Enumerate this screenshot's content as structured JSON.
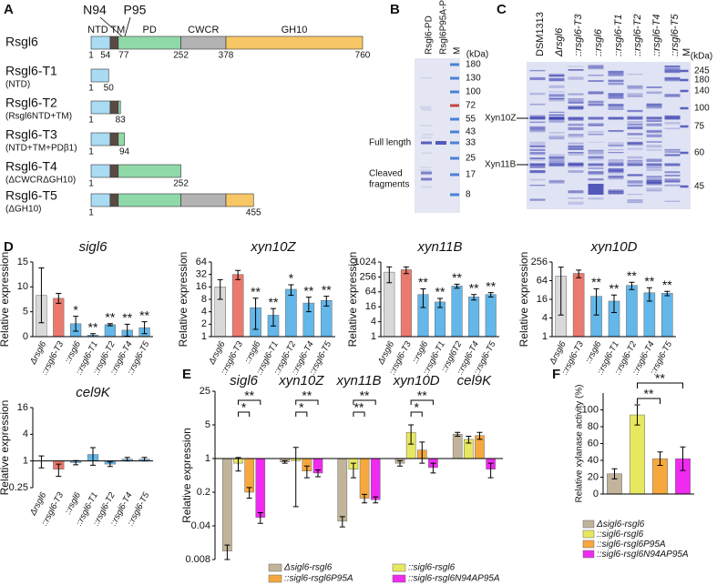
{
  "panel_a": {
    "label": "A",
    "domains": [
      "NTD",
      "TM",
      "PD",
      "CWCR",
      "GH10"
    ],
    "domain_colors": [
      "#a9dcf3",
      "#5a4a44",
      "#8fd9a8",
      "#b3b3b3",
      "#f7c766"
    ],
    "sites": [
      "N94",
      "P95"
    ],
    "constructs": [
      {
        "name": "Rsgl6",
        "positions": [
          1,
          54,
          77,
          252,
          378,
          760
        ]
      },
      {
        "name": "Rsgl6-T1",
        "note": "(NTD)",
        "positions": [
          1,
          50
        ]
      },
      {
        "name": "Rsgl6-T2",
        "note": "(Rsgl6NTD+TM)",
        "positions": [
          1,
          83
        ]
      },
      {
        "name": "Rsgl6-T3",
        "note": "(NTD+TM+PDβ1)",
        "positions": [
          1,
          94
        ],
        "color": "#e0201c"
      },
      {
        "name": "Rsgl6-T4",
        "note": "(ΔCWCRΔGH10)",
        "positions": [
          1,
          252
        ]
      },
      {
        "name": "Rsgl6-T5",
        "note": "(ΔGH10)",
        "positions": [
          1,
          455
        ]
      }
    ]
  },
  "panel_b": {
    "label": "B",
    "lanes": [
      "Rsgl6-PD",
      "Rsgl6P95A-PD",
      "M"
    ],
    "unit": "(kDa)",
    "markers": [
      180,
      130,
      100,
      72,
      55,
      43,
      33,
      25,
      17,
      8
    ],
    "full": "Full length",
    "cleaved": [
      "Cleaved",
      "fragments"
    ]
  },
  "panel_c": {
    "label": "C",
    "lanes": [
      {
        "name": "DSM1313"
      },
      {
        "name": "Δrsgl6"
      },
      {
        "name": "::rsgl6-T3",
        "color": "#e0201c"
      },
      {
        "name": "::rsgl6"
      },
      {
        "name": "::rsgl6-T1"
      },
      {
        "name": "::rsgl6-T2"
      },
      {
        "name": "::rsgl6-T4"
      },
      {
        "name": "::rsgl6-T5"
      },
      {
        "name": "M"
      }
    ],
    "unit": "(kDa)",
    "markers": [
      245,
      180,
      140,
      100,
      75,
      60,
      45
    ],
    "proteins": [
      "Xyn10Z",
      "Xyn11B"
    ]
  },
  "chart_data": [
    {
      "type": "bar",
      "panel": "D",
      "title": "sigl6",
      "ylabel": "Relative expression",
      "categories": [
        "Δrsgl6",
        "::rsgl6-T3",
        "::rsgl6",
        "::rsgl6-T1",
        "::rsgl6-T2",
        "::rsgl6-T4",
        "::rsgl6-T5"
      ],
      "category_colors": [
        "#111111",
        "#e0201c",
        "#111111",
        "#111111",
        "#111111",
        "#111111",
        "#111111"
      ],
      "colors": [
        "#d9d9d9",
        "#ea7a6e",
        "#63b7e9",
        "#63b7e9",
        "#63b7e9",
        "#63b7e9",
        "#63b7e9"
      ],
      "values": [
        8.3,
        7.7,
        2.6,
        0.3,
        2.4,
        1.3,
        1.8
      ],
      "errors": [
        5.5,
        1,
        1.5,
        0.3,
        0.2,
        1.2,
        1.2
      ],
      "significance": [
        null,
        null,
        "*",
        "**",
        "**",
        "**",
        "**"
      ],
      "log_scale": false,
      "ylim": [
        0,
        15
      ],
      "yticks": [
        0,
        5,
        10,
        15
      ]
    },
    {
      "type": "bar",
      "title": "xyn10Z",
      "ylabel": "Relative expression",
      "categories": [
        "Δrsgl6",
        "::rsgl6-T3",
        "::rsgl6",
        "::rsgl6-T1",
        "::rsgl6-T2",
        "::rsgl6-T4",
        "::rsgl6-T5"
      ],
      "category_colors": [
        "#111111",
        "#e0201c",
        "#111111",
        "#111111",
        "#111111",
        "#111111",
        "#111111"
      ],
      "colors": [
        "#d9d9d9",
        "#ea7a6e",
        "#63b7e9",
        "#63b7e9",
        "#63b7e9",
        "#63b7e9",
        "#63b7e9"
      ],
      "values": [
        16,
        32,
        5,
        3.3,
        14,
        6.5,
        7.5
      ],
      "errors": [
        8,
        8,
        3.5,
        1.5,
        4,
        2.5,
        2
      ],
      "significance": [
        null,
        null,
        "**",
        "**",
        "*",
        "**",
        "**"
      ],
      "log_scale": true,
      "ylim": [
        1,
        64
      ],
      "yticks": [
        1,
        2,
        4,
        8,
        16,
        32,
        64
      ]
    },
    {
      "type": "bar",
      "title": "xyn11B",
      "ylabel": "Relative expression",
      "categories": [
        "Δrsgl6",
        "::rsgl6-T3",
        "::rsgl6",
        "::rsgl6-T1",
        "::rsgl6T2",
        "::rsgl6-T4",
        "::rsgl6-T5"
      ],
      "category_colors": [
        "#111111",
        "#e0201c",
        "#111111",
        "#111111",
        "#111111",
        "#111111",
        "#111111"
      ],
      "colors": [
        "#d9d9d9",
        "#ea7a6e",
        "#63b7e9",
        "#63b7e9",
        "#63b7e9",
        "#63b7e9",
        "#63b7e9"
      ],
      "values": [
        400,
        500,
        50,
        25,
        110,
        40,
        50
      ],
      "errors": [
        250,
        150,
        35,
        10,
        20,
        10,
        10
      ],
      "significance": [
        null,
        null,
        "**",
        "**",
        "**",
        "**",
        "**"
      ],
      "log_scale": true,
      "ylim": [
        1,
        1024
      ],
      "yticks": [
        1,
        4,
        16,
        64,
        256,
        1024
      ]
    },
    {
      "type": "bar",
      "title": "xyn10D",
      "ylabel": "Relative expression",
      "categories": [
        "Δrsgl6",
        "::rsgl6-T3",
        "::rsgl6",
        "::rsgl6-T1",
        "::rsgl6-T2",
        "::rsgl6-T4",
        "::rsgl6-T5"
      ],
      "category_colors": [
        "#111111",
        "#e0201c",
        "#111111",
        "#111111",
        "#111111",
        "#111111",
        "#111111"
      ],
      "colors": [
        "#d9d9d9",
        "#ea7a6e",
        "#63b7e9",
        "#63b7e9",
        "#63b7e9",
        "#63b7e9",
        "#63b7e9"
      ],
      "values": [
        90,
        110,
        20,
        14,
        45,
        26,
        25
      ],
      "errors": [
        85,
        30,
        15,
        8,
        12,
        12,
        4
      ],
      "significance": [
        null,
        null,
        "**",
        "**",
        "**",
        "**",
        "**"
      ],
      "log_scale": true,
      "ylim": [
        1,
        256
      ],
      "yticks": [
        1,
        4,
        16,
        64,
        256
      ]
    },
    {
      "type": "bar",
      "title": "cel9K",
      "ylabel": "Relative expression",
      "categories": [
        "Δrsgl6",
        "::rsgl6-T3",
        "::rsgl6",
        "::rsgl6-T1",
        "::rsgl6-T2",
        "::rsgl6-T4",
        "::rsgl6-T5"
      ],
      "category_colors": [
        "#111111",
        "#e0201c",
        "#111111",
        "#111111",
        "#111111",
        "#111111",
        "#111111"
      ],
      "colors": [
        "#d9d9d9",
        "#ea7a6e",
        "#63b7e9",
        "#63b7e9",
        "#63b7e9",
        "#63b7e9",
        "#63b7e9"
      ],
      "values": [
        1,
        0.65,
        0.92,
        1.4,
        0.85,
        1.1,
        1.1
      ],
      "errors": [
        0.3,
        0.2,
        0.1,
        0.6,
        0.1,
        0.1,
        0.1
      ],
      "log_scale": true,
      "ylim": [
        0.25,
        16
      ],
      "yticks": [
        0.25,
        1,
        4,
        16
      ]
    },
    {
      "type": "grouped_bar",
      "panel": "E",
      "ylabel": "Relative expression",
      "categories": [
        "sigl6",
        "xyn10Z",
        "xyn11B",
        "xyn10D",
        "cel9K"
      ],
      "series": [
        {
          "name": "Δsigl6-rsgl6",
          "color": "#c2b49a",
          "values": [
            0.012,
            0.85,
            0.05,
            0.8,
            3.2
          ],
          "errors": [
            0.004,
            0.05,
            0.012,
            0.1,
            0.3
          ]
        },
        {
          "name": "::sigl6-rsgl6",
          "color": "#e8e860",
          "values": [
            0.8,
            0.9,
            0.6,
            3.5,
            2.5
          ],
          "errors": [
            0.25,
            0.8,
            0.2,
            1.5,
            0.4
          ]
        },
        {
          "name": "::sigl6-rsgl6P95A",
          "color": "#f6a83e",
          "values": [
            0.2,
            0.55,
            0.15,
            1.5,
            3.0
          ],
          "errors": [
            0.05,
            0.15,
            0.03,
            0.7,
            0.5
          ]
        },
        {
          "name": "::sigl6-rsgl6N94AP95A",
          "color": "#ee2bee",
          "values": [
            0.06,
            0.5,
            0.14,
            0.65,
            0.6
          ],
          "errors": [
            0.015,
            0.08,
            0.02,
            0.15,
            0.2
          ]
        }
      ],
      "significance": [
        "*",
        "**",
        "*",
        "**",
        "**",
        "**",
        "*",
        "**"
      ],
      "log_scale": true,
      "ylim": [
        0.008,
        25
      ],
      "yticks": [
        0.008,
        0.04,
        0.2,
        1,
        5,
        25
      ]
    },
    {
      "type": "bar",
      "panel": "F",
      "ylabel": "Relative xylanase activity (%)",
      "series": [
        {
          "name": "Δsigl6-rsgl6",
          "color": "#c2b49a",
          "values": [
            24
          ],
          "errors": [
            6
          ]
        },
        {
          "name": "::sigl6-rsgl6",
          "color": "#e8e860",
          "values": [
            94
          ],
          "errors": [
            12
          ]
        },
        {
          "name": "::sigl6-rsgl6P95A",
          "color": "#f6a83e",
          "values": [
            42
          ],
          "errors": [
            8
          ]
        },
        {
          "name": "::sigl6-rsgl6N94AP95A",
          "color": "#ee2bee",
          "values": [
            42
          ],
          "errors": [
            14
          ]
        }
      ],
      "significance": [
        "**",
        "**"
      ],
      "log_scale": false,
      "ylim": [
        0,
        120
      ],
      "yticks": [
        0,
        20,
        40,
        60,
        80,
        100
      ]
    }
  ]
}
